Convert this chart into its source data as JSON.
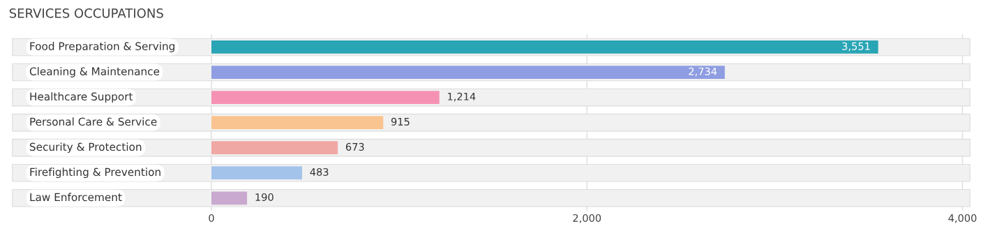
{
  "chart_data": {
    "type": "bar",
    "orientation": "horizontal",
    "title": "SERVICES OCCUPATIONS",
    "categories": [
      "Food Preparation & Serving",
      "Cleaning & Maintenance",
      "Healthcare Support",
      "Personal Care & Service",
      "Security & Protection",
      "Firefighting & Prevention",
      "Law Enforcement"
    ],
    "values": [
      3551,
      2734,
      1214,
      915,
      673,
      483,
      190
    ],
    "colors": [
      "#2aa5b5",
      "#8f9de2",
      "#f592b3",
      "#f9c48f",
      "#f0a8a5",
      "#a4c3eb",
      "#c9a9d0"
    ],
    "xlim": [
      -1070,
      4050
    ],
    "xticks": [
      0,
      {
        "value": 2000,
        "label": "2,000"
      },
      {
        "value": 4000,
        "label": "4,000"
      }
    ],
    "value_labels": [
      "3,551",
      "2,734",
      "1,214",
      "915",
      "673",
      "483",
      "190"
    ],
    "grid": "x"
  }
}
